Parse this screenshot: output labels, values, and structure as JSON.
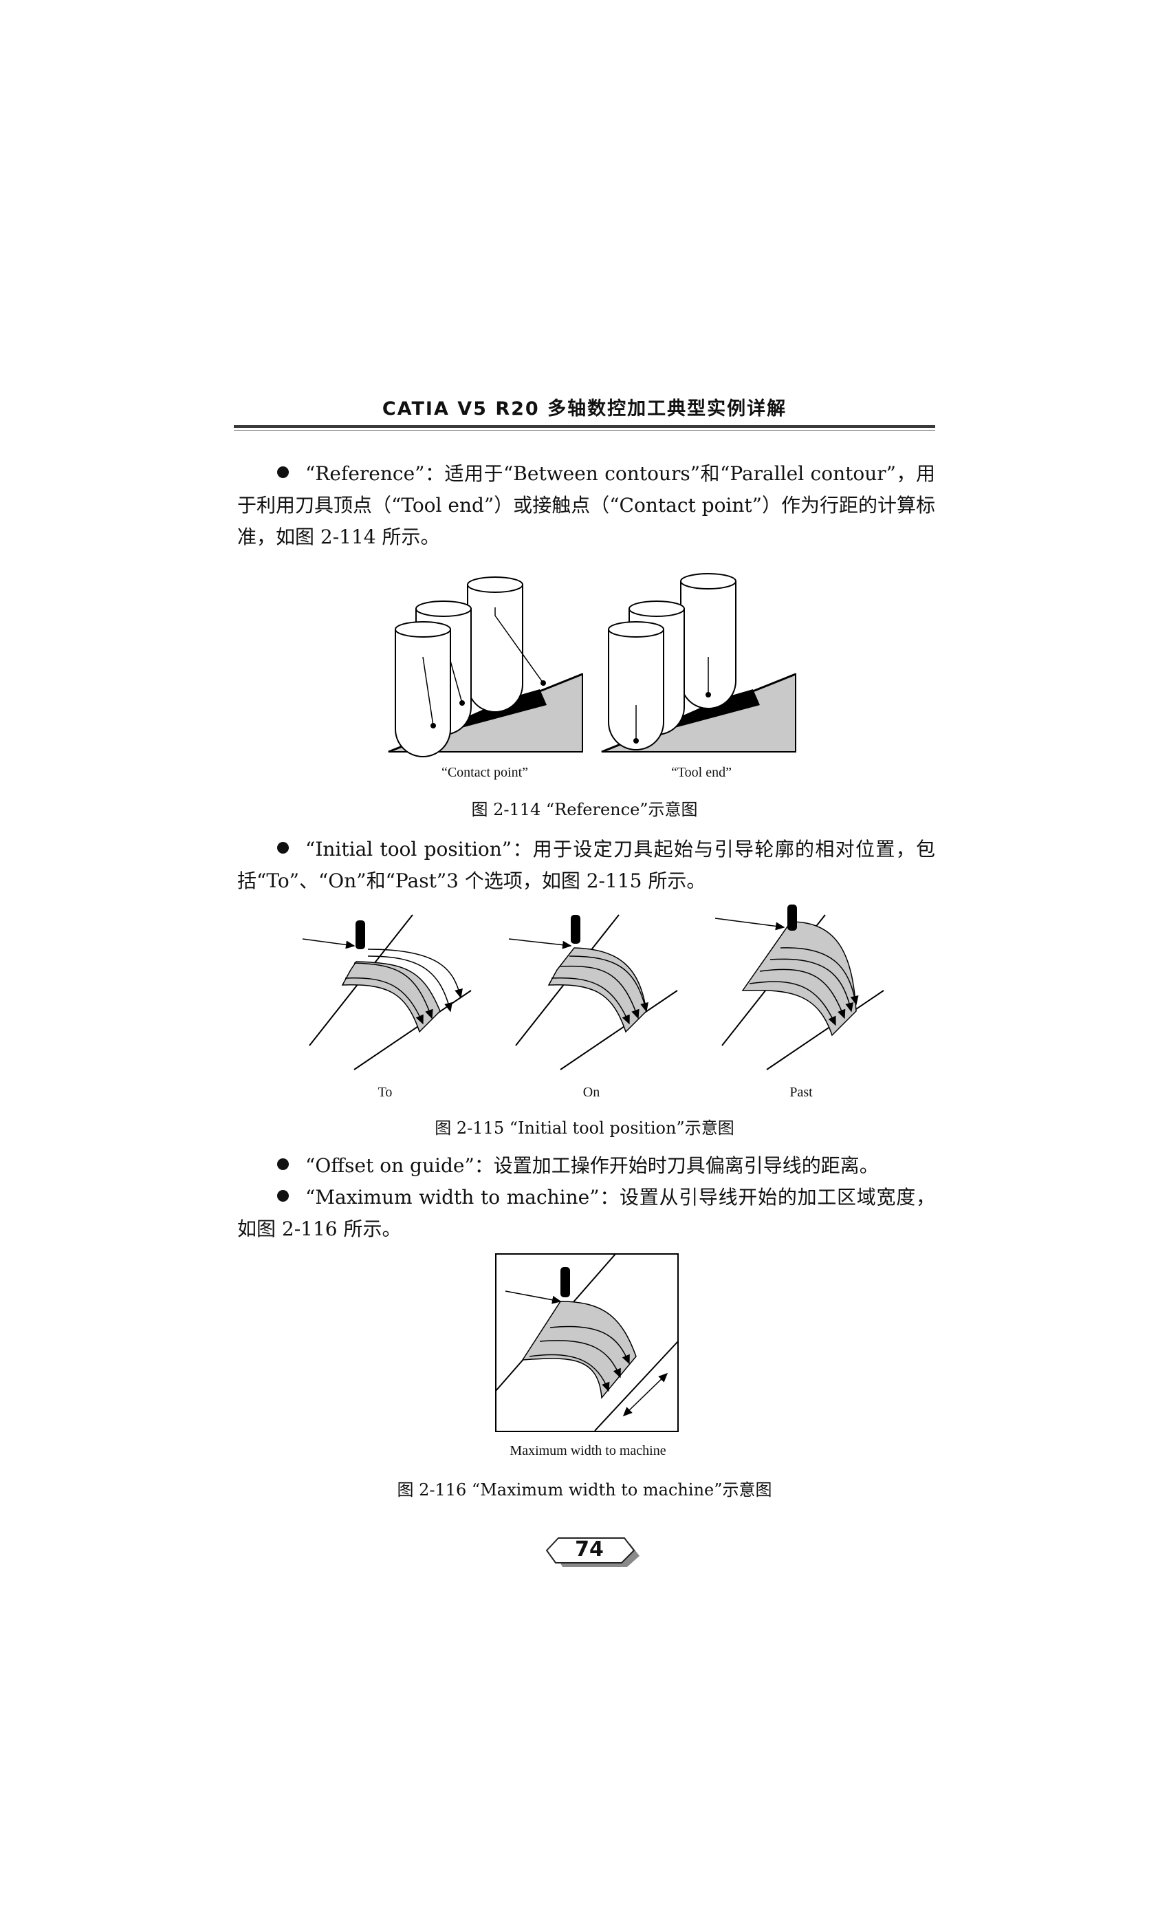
{
  "header": {
    "title": "CATIA V5 R20 多轴数控加工典型实例详解"
  },
  "paragraphs": {
    "p1": "“Reference”：适用于“Between contours”和“Parallel contour”，用于利用刀具顶点（“Tool end”）或接触点（“Contact point”）作为行距的计算标准，如图 2-114 所示。",
    "p2": "“Initial tool position”：用于设定刀具起始与引导轮廓的相对位置，包括“To”、“On”和“Past”3 个选项，如图 2-115 所示。",
    "p3": "“Offset on guide”：设置加工操作开始时刀具偏离引导线的距离。",
    "p4": "“Maximum width to machine”：设置从引导线开始的加工区域宽度，如图 2-116 所示。"
  },
  "figures": {
    "fig114": {
      "labels": [
        "“Contact point”",
        "“Tool end”"
      ],
      "caption": "图 2-114 “Reference”示意图"
    },
    "fig115": {
      "labels": [
        "To",
        "On",
        "Past"
      ],
      "caption": "图 2-115 “Initial tool position”示意图"
    },
    "fig116": {
      "label": "Maximum width to machine",
      "caption": "图 2-116 “Maximum width to machine”示意图"
    }
  },
  "page": {
    "number": "74"
  }
}
